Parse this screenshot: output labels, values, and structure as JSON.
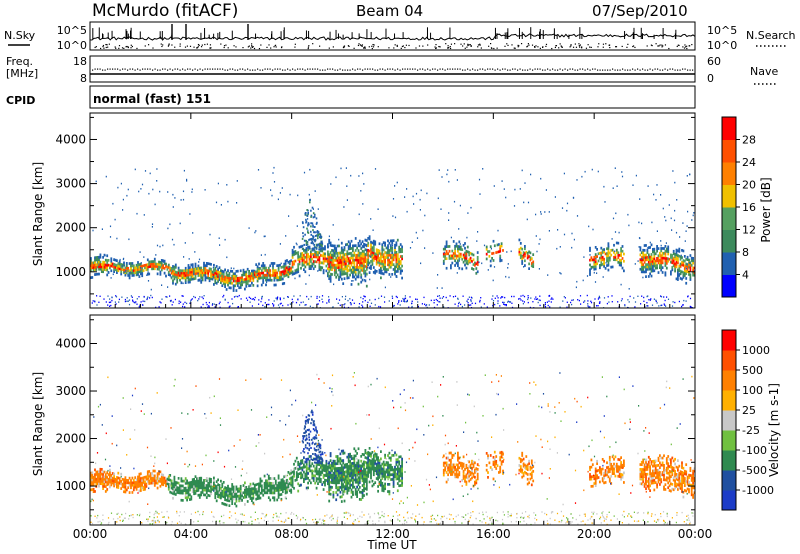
{
  "header": {
    "station": "McMurdo (fitACF)",
    "beam": "Beam 04",
    "date": "07/Sep/2010"
  },
  "labels": {
    "nsky": "N.Sky",
    "freq_line1": "Freq.",
    "freq_line2": "[MHz]",
    "cpid": "CPID",
    "nsearch": "N.Search",
    "nave": "Nave",
    "cpid_value": "normal (fast) 151"
  },
  "colors": {
    "power": [
      "#0000ff",
      "#2060b0",
      "#3c8a5c",
      "#55a060",
      "#f0c000",
      "#ff8000",
      "#ff5000",
      "#ff0000"
    ],
    "velocity": [
      "#ff0000",
      "#ff5000",
      "#ff8000",
      "#ffb000",
      "#c8c8c8",
      "#70c040",
      "#2f8a50",
      "#2050a0",
      "#1c3cc8"
    ]
  },
  "chart_data": [
    {
      "type": "line",
      "panel": "noise",
      "left_axis": {
        "ticks": [
          "10^5",
          "10^0"
        ],
        "label": "N.Sky"
      },
      "right_axis": {
        "ticks": [
          "10^5",
          "10^0"
        ],
        "label": "N.Search"
      }
    },
    {
      "type": "line",
      "panel": "frequency",
      "left_axis": {
        "ticks": [
          "18",
          "8"
        ],
        "label": "Freq. [MHz]",
        "range": [
          8,
          18
        ]
      },
      "right_axis": {
        "ticks": [
          "60",
          "0"
        ],
        "label": "Nave",
        "range": [
          0,
          60
        ]
      }
    },
    {
      "type": "heatmap",
      "panel": "power",
      "xlabel": "Time UT",
      "ylabel": "Slant Range [km]",
      "ylim": [
        180,
        4600
      ],
      "yticks": [
        "1000",
        "2000",
        "3000",
        "4000"
      ],
      "colorbar": {
        "label": "Power [dB]",
        "ticks": [
          "4",
          "8",
          "12",
          "16",
          "20",
          "24",
          "28"
        ]
      },
      "xticks": [
        "00:00",
        "04:00",
        "08:00",
        "12:00",
        "16:00",
        "20:00",
        "00:00"
      ]
    },
    {
      "type": "heatmap",
      "panel": "velocity",
      "xlabel": "Time UT",
      "ylabel": "Slant Range [km]",
      "ylim": [
        180,
        4600
      ],
      "yticks": [
        "1000",
        "2000",
        "3000",
        "4000"
      ],
      "colorbar": {
        "label": "Velocity [m s-1]",
        "ticks": [
          "1000",
          "500",
          "100",
          "25",
          "-25",
          "-100",
          "-500",
          "-1000"
        ]
      },
      "xticks": [
        "00:00",
        "04:00",
        "08:00",
        "12:00",
        "16:00",
        "20:00",
        "00:00"
      ],
      "xlabel_shown": "Time UT"
    }
  ]
}
